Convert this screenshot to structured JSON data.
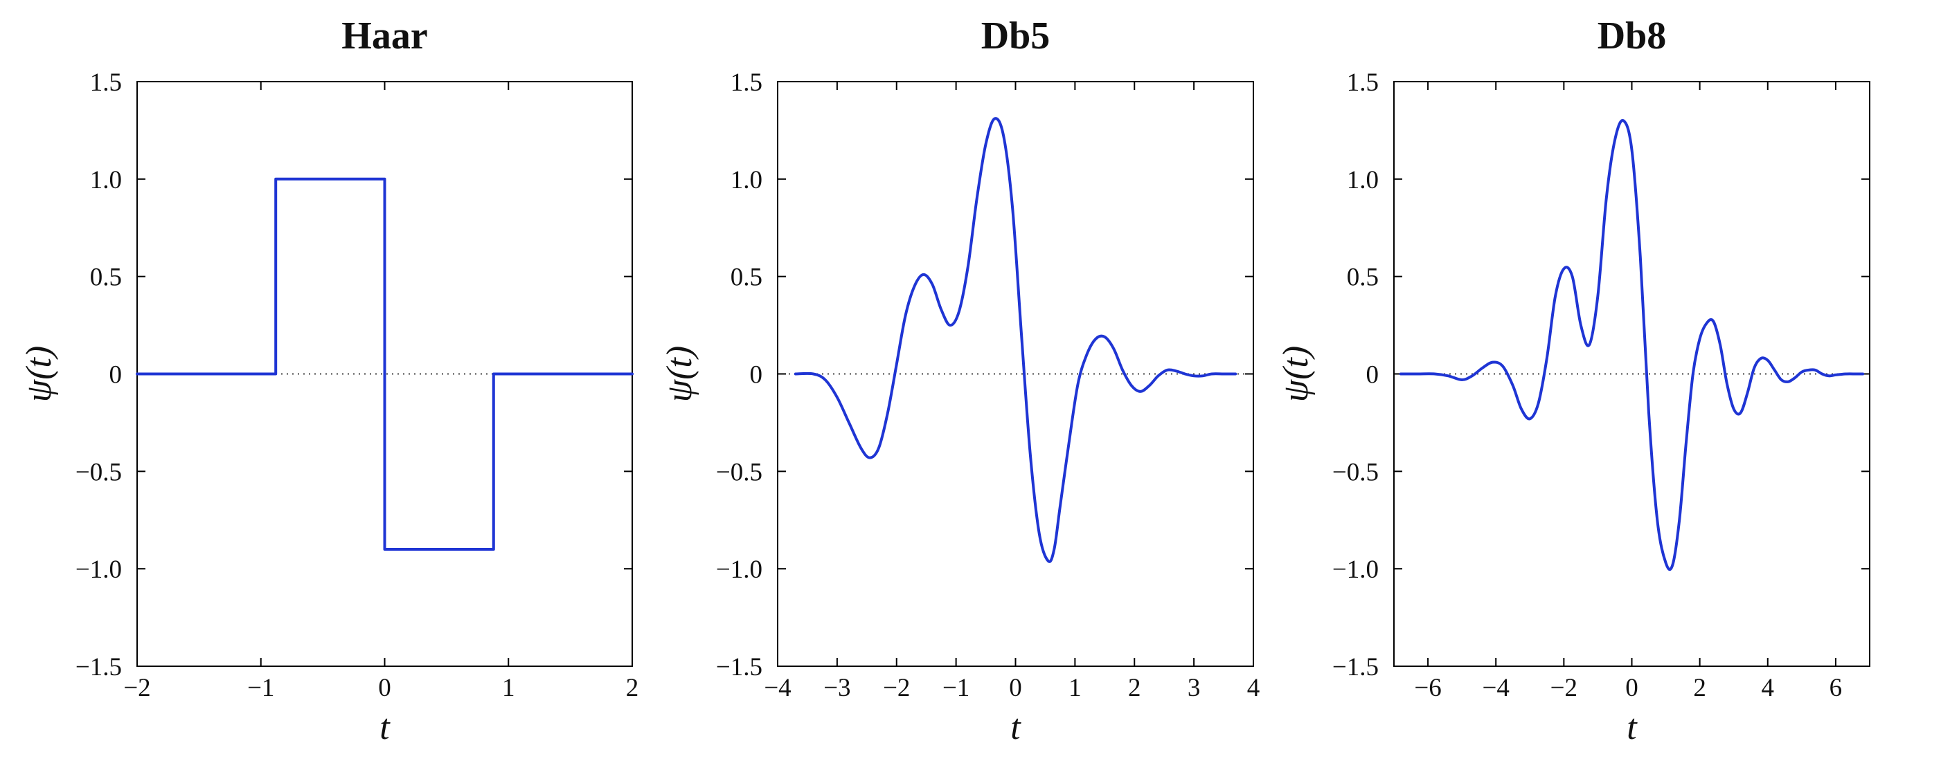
{
  "colors": {
    "line": "#1f35d4",
    "axis": "#000000",
    "zero_line": "#444444",
    "background": "#ffffff"
  },
  "chart_data": [
    {
      "type": "line",
      "title": "Haar",
      "xlabel": "t",
      "ylabel": "ψ(t)",
      "xlim": [
        -2,
        2
      ],
      "ylim": [
        -1.5,
        1.5
      ],
      "xticks": [
        -2,
        -1,
        0,
        1,
        2
      ],
      "xtick_labels": [
        "−2",
        "−1",
        "0",
        "1",
        "2"
      ],
      "yticks": [
        -1.5,
        -1.0,
        -0.5,
        0,
        0.5,
        1.0,
        1.5
      ],
      "ytick_labels": [
        "−1.5",
        "−1.0",
        "−0.5",
        "0",
        "0.5",
        "1.0",
        "1.5"
      ],
      "zero_line": true,
      "grid": false,
      "legend": "none",
      "series": [
        {
          "x": [
            -2,
            -0.88,
            -0.88,
            0,
            0,
            0.88,
            0.88,
            2
          ],
          "y": [
            0,
            0,
            1.0,
            1.0,
            -0.9,
            -0.9,
            0,
            0
          ]
        }
      ]
    },
    {
      "type": "line",
      "title": "Db5",
      "xlabel": "t",
      "ylabel": "ψ(t)",
      "xlim": [
        -4,
        4
      ],
      "ylim": [
        -1.5,
        1.5
      ],
      "xticks": [
        -4,
        -3,
        -2,
        -1,
        0,
        1,
        2,
        3,
        4
      ],
      "xtick_labels": [
        "−4",
        "−3",
        "−2",
        "−1",
        "0",
        "1",
        "2",
        "3",
        "4"
      ],
      "yticks": [
        -1.5,
        -1.0,
        -0.5,
        0,
        0.5,
        1.0,
        1.5
      ],
      "ytick_labels": [
        "−1.5",
        "−1.0",
        "−0.5",
        "0",
        "0.5",
        "1.0",
        "1.5"
      ],
      "zero_line": true,
      "grid": false,
      "legend": "none",
      "series": [
        {
          "x": [
            -3.7,
            -3.4,
            -3.2,
            -3.0,
            -2.8,
            -2.6,
            -2.45,
            -2.3,
            -2.15,
            -2.0,
            -1.85,
            -1.7,
            -1.55,
            -1.4,
            -1.25,
            -1.1,
            -0.95,
            -0.8,
            -0.65,
            -0.5,
            -0.35,
            -0.2,
            -0.05,
            0.1,
            0.25,
            0.4,
            0.55,
            0.65,
            0.75,
            0.9,
            1.05,
            1.2,
            1.35,
            1.5,
            1.65,
            1.8,
            1.95,
            2.1,
            2.25,
            2.4,
            2.55,
            2.7,
            2.85,
            3.0,
            3.15,
            3.3,
            3.5,
            3.7
          ],
          "y": [
            0,
            0,
            -0.03,
            -0.12,
            -0.25,
            -0.38,
            -0.43,
            -0.38,
            -0.2,
            0.05,
            0.3,
            0.45,
            0.51,
            0.46,
            0.33,
            0.25,
            0.32,
            0.55,
            0.9,
            1.18,
            1.31,
            1.22,
            0.85,
            0.2,
            -0.42,
            -0.82,
            -0.96,
            -0.9,
            -0.68,
            -0.35,
            -0.05,
            0.1,
            0.18,
            0.19,
            0.13,
            0.02,
            -0.06,
            -0.09,
            -0.06,
            -0.01,
            0.02,
            0.015,
            0,
            -0.01,
            -0.01,
            0,
            0,
            0
          ]
        }
      ]
    },
    {
      "type": "line",
      "title": "Db8",
      "xlabel": "t",
      "ylabel": "ψ(t)",
      "xlim": [
        -7,
        7
      ],
      "ylim": [
        -1.5,
        1.5
      ],
      "xticks": [
        -6,
        -4,
        -2,
        0,
        2,
        4,
        6
      ],
      "xtick_labels": [
        "−6",
        "−4",
        "−2",
        "0",
        "2",
        "4",
        "6"
      ],
      "yticks": [
        -1.5,
        -1.0,
        -0.5,
        0,
        0.5,
        1.0,
        1.5
      ],
      "ytick_labels": [
        "−1.5",
        "−1.0",
        "−0.5",
        "0",
        "0.5",
        "1.0",
        "1.5"
      ],
      "zero_line": true,
      "grid": false,
      "legend": "none",
      "series": [
        {
          "x": [
            -6.8,
            -6.3,
            -5.8,
            -5.4,
            -5.0,
            -4.7,
            -4.4,
            -4.1,
            -3.8,
            -3.5,
            -3.25,
            -3.0,
            -2.75,
            -2.5,
            -2.25,
            -2.0,
            -1.75,
            -1.5,
            -1.25,
            -1.0,
            -0.75,
            -0.5,
            -0.25,
            0,
            0.25,
            0.5,
            0.75,
            1.0,
            1.2,
            1.4,
            1.6,
            1.8,
            2.0,
            2.2,
            2.4,
            2.6,
            2.8,
            3.0,
            3.2,
            3.4,
            3.6,
            3.8,
            4.0,
            4.2,
            4.4,
            4.6,
            4.8,
            5.0,
            5.2,
            5.4,
            5.6,
            5.8,
            6.0,
            6.3,
            6.6,
            6.8
          ],
          "y": [
            0,
            0,
            0,
            -0.01,
            -0.03,
            -0.01,
            0.03,
            0.06,
            0.04,
            -0.06,
            -0.18,
            -0.23,
            -0.15,
            0.08,
            0.4,
            0.54,
            0.5,
            0.25,
            0.15,
            0.4,
            0.9,
            1.2,
            1.3,
            1.15,
            0.6,
            -0.2,
            -0.75,
            -0.97,
            -0.98,
            -0.75,
            -0.35,
            0.0,
            0.18,
            0.26,
            0.27,
            0.15,
            -0.05,
            -0.18,
            -0.2,
            -0.1,
            0.03,
            0.08,
            0.07,
            0.02,
            -0.03,
            -0.04,
            -0.02,
            0.01,
            0.02,
            0.02,
            0,
            -0.01,
            -0.005,
            0,
            0,
            0
          ]
        }
      ]
    }
  ]
}
